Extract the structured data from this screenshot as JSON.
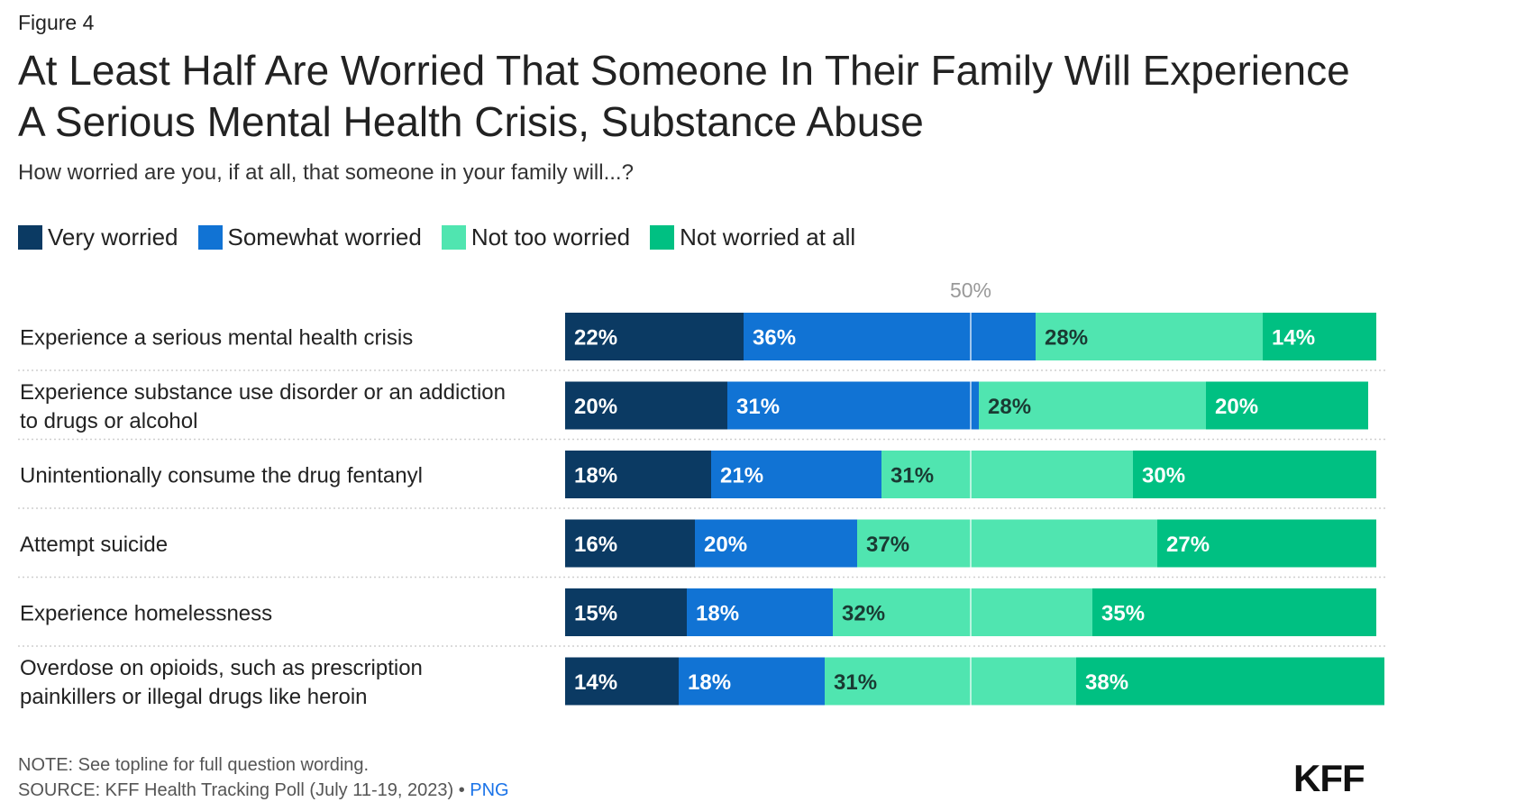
{
  "figure_label": "Figure 4",
  "title": "At Least Half Are Worried That Someone In Their Family Will Experience A Serious Mental Health Crisis, Substance Abuse",
  "subtitle": "How worried are you, if at all, that someone in your family will...?",
  "legend": [
    {
      "label": "Very worried",
      "color": "#0b3a63"
    },
    {
      "label": "Somewhat worried",
      "color": "#1173d4"
    },
    {
      "label": "Not too worried",
      "color": "#50e5b0"
    },
    {
      "label": "Not worried at all",
      "color": "#00c082"
    }
  ],
  "chart_data": {
    "type": "bar",
    "orientation": "horizontal",
    "stacked": true,
    "reference_line": {
      "value": 50,
      "label": "50%"
    },
    "xlim": [
      0,
      100
    ],
    "categories": [
      [
        "Experience a serious mental health crisis"
      ],
      [
        "Experience substance use disorder or an addiction",
        "to drugs or alcohol"
      ],
      [
        "Unintentionally consume the drug fentanyl"
      ],
      [
        "Attempt suicide"
      ],
      [
        "Experience homelessness"
      ],
      [
        "Overdose on opioids, such as prescription",
        "painkillers or illegal drugs like heroin"
      ]
    ],
    "series": [
      {
        "name": "Very worried",
        "color": "#0b3a63",
        "label_color": "#ffffff",
        "values": [
          22,
          20,
          18,
          16,
          15,
          14
        ]
      },
      {
        "name": "Somewhat worried",
        "color": "#1173d4",
        "label_color": "#ffffff",
        "values": [
          36,
          31,
          21,
          20,
          18,
          18
        ]
      },
      {
        "name": "Not too worried",
        "color": "#50e5b0",
        "label_color": "#1a3a33",
        "values": [
          28,
          28,
          31,
          37,
          32,
          31
        ]
      },
      {
        "name": "Not worried at all",
        "color": "#00c082",
        "label_color": "#ffffff",
        "values": [
          14,
          20,
          30,
          27,
          35,
          38
        ]
      }
    ]
  },
  "footer": {
    "note": "NOTE: See topline for full question wording.",
    "source": "SOURCE: KFF Health Tracking Poll (July 11-19, 2023) • ",
    "source_link": "PNG",
    "logo": "KFF"
  }
}
